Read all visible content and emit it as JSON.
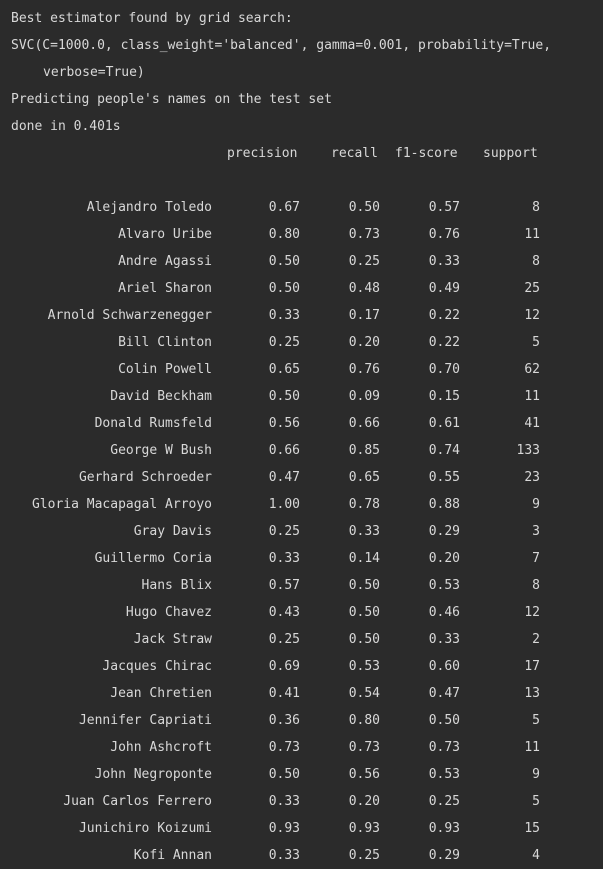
{
  "output": {
    "line1": "Best estimator found by grid search:",
    "line2": "SVC(C=1000.0, class_weight='balanced', gamma=0.001, probability=True,",
    "line3": "verbose=True)",
    "line4": "Predicting people's names on the test set",
    "line5": "done in 0.401s"
  },
  "report": {
    "headers": {
      "precision": "precision",
      "recall": "recall",
      "f1": "f1-score",
      "support": "support"
    },
    "rows": [
      {
        "name": "Alejandro Toledo",
        "precision": "0.67",
        "recall": "0.50",
        "f1": "0.57",
        "support": "8"
      },
      {
        "name": "Alvaro Uribe",
        "precision": "0.80",
        "recall": "0.73",
        "f1": "0.76",
        "support": "11"
      },
      {
        "name": "Andre Agassi",
        "precision": "0.50",
        "recall": "0.25",
        "f1": "0.33",
        "support": "8"
      },
      {
        "name": "Ariel Sharon",
        "precision": "0.50",
        "recall": "0.48",
        "f1": "0.49",
        "support": "25"
      },
      {
        "name": "Arnold Schwarzenegger",
        "precision": "0.33",
        "recall": "0.17",
        "f1": "0.22",
        "support": "12"
      },
      {
        "name": "Bill Clinton",
        "precision": "0.25",
        "recall": "0.20",
        "f1": "0.22",
        "support": "5"
      },
      {
        "name": "Colin Powell",
        "precision": "0.65",
        "recall": "0.76",
        "f1": "0.70",
        "support": "62"
      },
      {
        "name": "David Beckham",
        "precision": "0.50",
        "recall": "0.09",
        "f1": "0.15",
        "support": "11"
      },
      {
        "name": "Donald Rumsfeld",
        "precision": "0.56",
        "recall": "0.66",
        "f1": "0.61",
        "support": "41"
      },
      {
        "name": "George W Bush",
        "precision": "0.66",
        "recall": "0.85",
        "f1": "0.74",
        "support": "133"
      },
      {
        "name": "Gerhard Schroeder",
        "precision": "0.47",
        "recall": "0.65",
        "f1": "0.55",
        "support": "23"
      },
      {
        "name": "Gloria Macapagal Arroyo",
        "precision": "1.00",
        "recall": "0.78",
        "f1": "0.88",
        "support": "9"
      },
      {
        "name": "Gray Davis",
        "precision": "0.25",
        "recall": "0.33",
        "f1": "0.29",
        "support": "3"
      },
      {
        "name": "Guillermo Coria",
        "precision": "0.33",
        "recall": "0.14",
        "f1": "0.20",
        "support": "7"
      },
      {
        "name": "Hans Blix",
        "precision": "0.57",
        "recall": "0.50",
        "f1": "0.53",
        "support": "8"
      },
      {
        "name": "Hugo Chavez",
        "precision": "0.43",
        "recall": "0.50",
        "f1": "0.46",
        "support": "12"
      },
      {
        "name": "Jack Straw",
        "precision": "0.25",
        "recall": "0.50",
        "f1": "0.33",
        "support": "2"
      },
      {
        "name": "Jacques Chirac",
        "precision": "0.69",
        "recall": "0.53",
        "f1": "0.60",
        "support": "17"
      },
      {
        "name": "Jean Chretien",
        "precision": "0.41",
        "recall": "0.54",
        "f1": "0.47",
        "support": "13"
      },
      {
        "name": "Jennifer Capriati",
        "precision": "0.36",
        "recall": "0.80",
        "f1": "0.50",
        "support": "5"
      },
      {
        "name": "John Ashcroft",
        "precision": "0.73",
        "recall": "0.73",
        "f1": "0.73",
        "support": "11"
      },
      {
        "name": "John Negroponte",
        "precision": "0.50",
        "recall": "0.56",
        "f1": "0.53",
        "support": "9"
      },
      {
        "name": "Juan Carlos Ferrero",
        "precision": "0.33",
        "recall": "0.20",
        "f1": "0.25",
        "support": "5"
      },
      {
        "name": "Junichiro Koizumi",
        "precision": "0.93",
        "recall": "0.93",
        "f1": "0.93",
        "support": "15"
      },
      {
        "name": "Kofi Annan",
        "precision": "0.33",
        "recall": "0.25",
        "f1": "0.29",
        "support": "4"
      }
    ]
  }
}
